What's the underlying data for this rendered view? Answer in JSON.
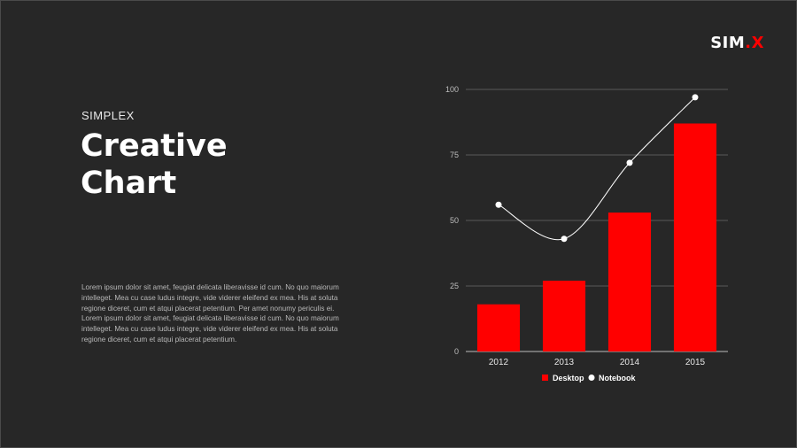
{
  "logo": {
    "main": "SIM",
    "dot": ".",
    "suffix": "X"
  },
  "kicker": "SIMPLEX",
  "title_line1": "Creative",
  "title_line2": "Chart",
  "body_text": "Lorem ipsum dolor sit amet, feugiat delicata liberavisse id cum. No quo maiorum intelleget. Mea cu case ludus integre, vide viderer eleifend ex mea. His at soluta regione diceret, cum et atqui placerat petentium. Per amet nonumy periculis ei. Lorem ipsum dolor sit amet, feugiat delicata liberavisse id cum. No quo maiorum intelleget. Mea cu case ludus integre, vide viderer eleifend ex mea. His at soluta regione diceret, cum et atqui placerat petentium.",
  "colors": {
    "background": "#272727",
    "bar": "#ff0000",
    "line": "#ffffff",
    "accent": "#ff0000"
  },
  "chart_data": {
    "type": "bar",
    "categories": [
      "2012",
      "2013",
      "2014",
      "2015"
    ],
    "ylim": [
      0,
      100
    ],
    "yticks": [
      0,
      25,
      50,
      75,
      100
    ],
    "grid": true,
    "legend_position": "bottom",
    "series": [
      {
        "name": "Desktop",
        "type": "bar",
        "values": [
          18,
          27,
          53,
          87
        ]
      },
      {
        "name": "Notebook",
        "type": "line",
        "values": [
          56,
          43,
          72,
          97
        ]
      }
    ]
  }
}
